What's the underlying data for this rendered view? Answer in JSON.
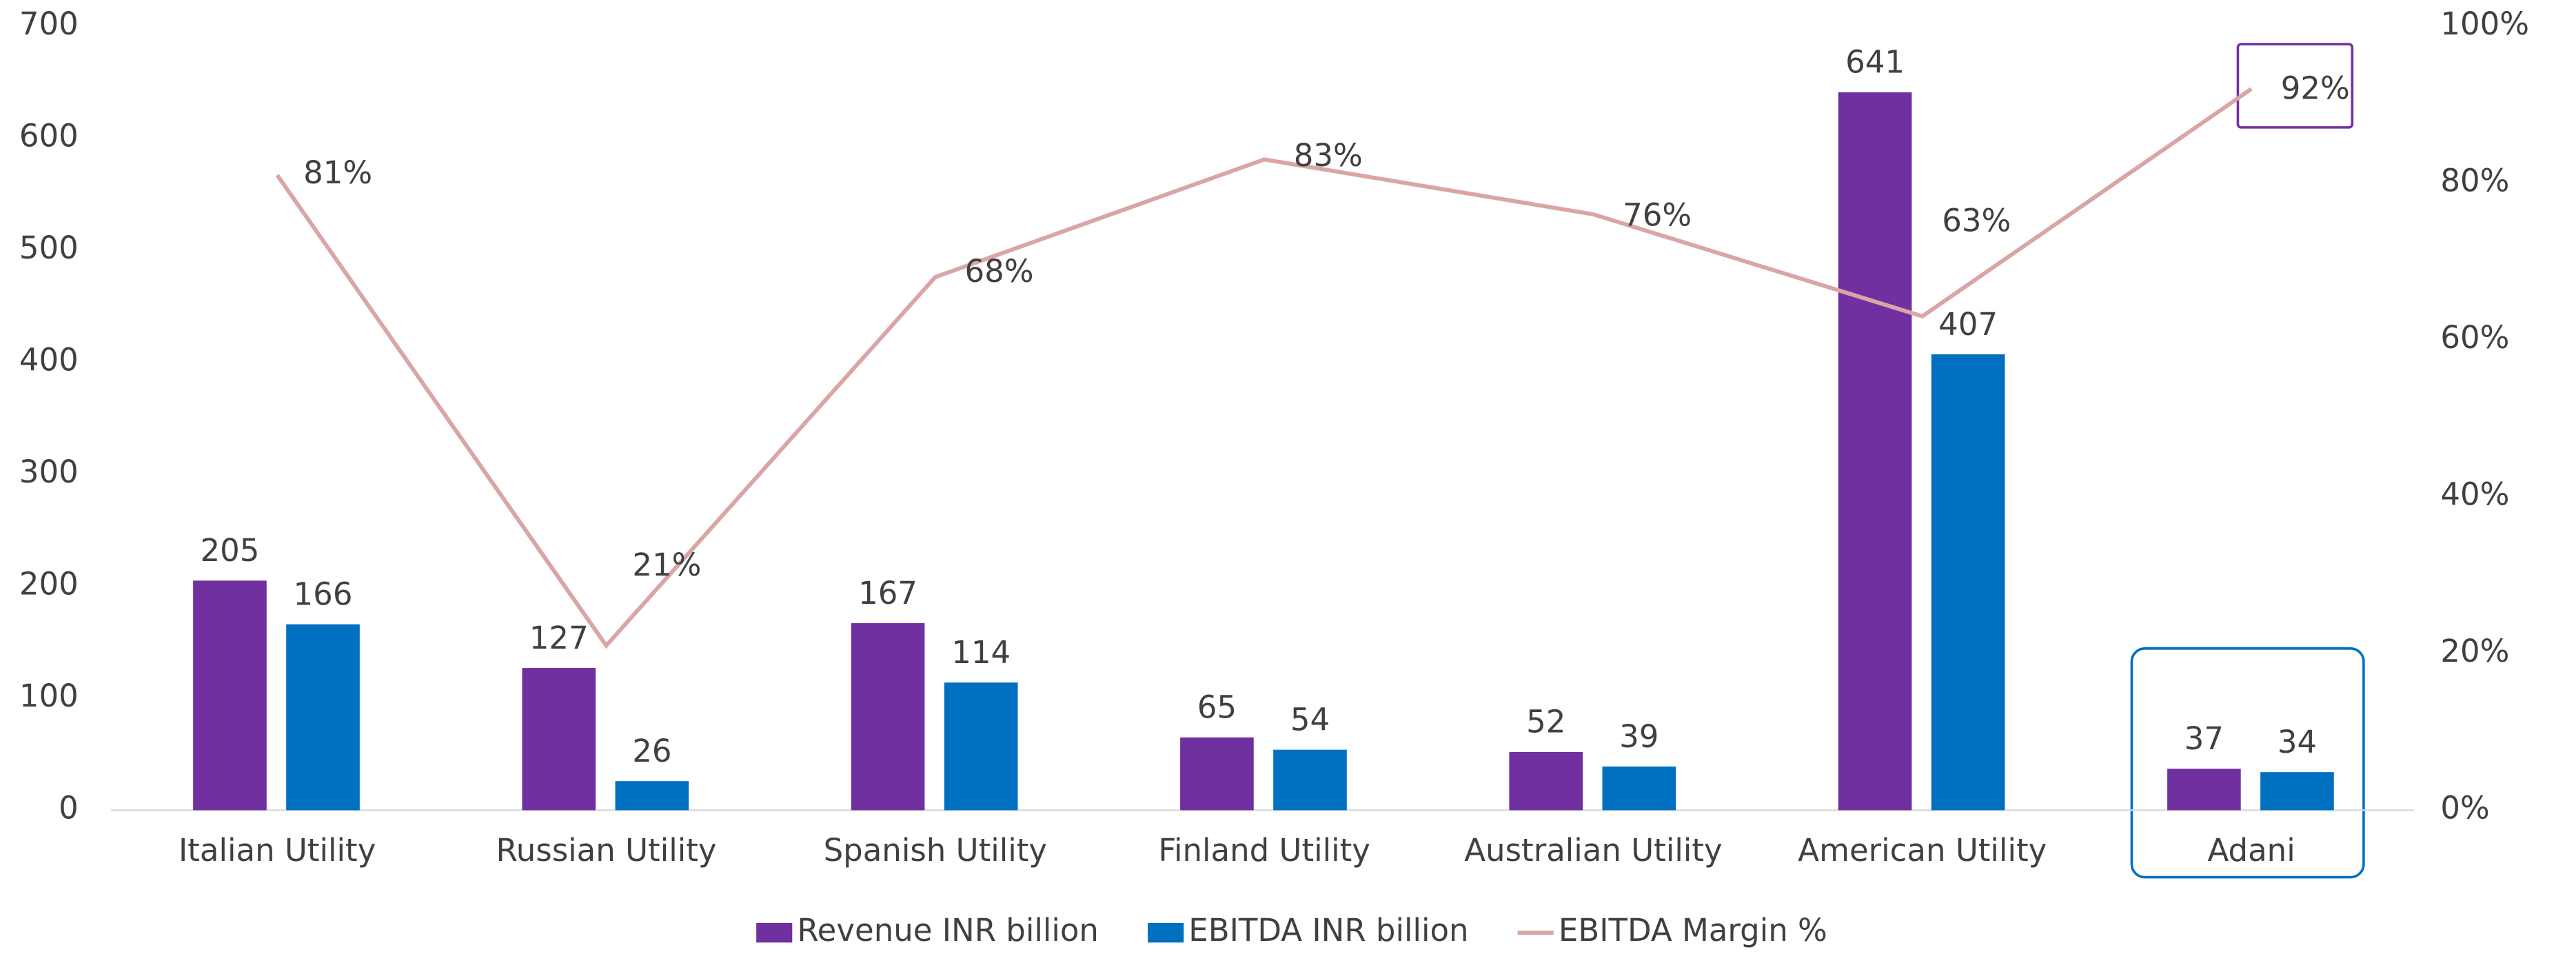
{
  "chart_data": {
    "type": "bar",
    "categories": [
      "Italian Utility",
      "Russian Utility",
      "Spanish Utility",
      "Finland Utility",
      "Australian Utility",
      "American Utility",
      "Adani"
    ],
    "series": [
      {
        "name": "Revenue INR billion",
        "color": "#7030a0",
        "values": [
          205,
          127,
          167,
          65,
          52,
          641,
          37
        ]
      },
      {
        "name": "EBITDA INR billion",
        "color": "#0070c0",
        "values": [
          166,
          26,
          114,
          54,
          39,
          407,
          34
        ]
      },
      {
        "name": "EBITDA Margin %",
        "color": "#d9a5a5",
        "type": "line",
        "axis": "y2",
        "values": [
          81,
          21,
          68,
          83,
          76,
          63,
          92
        ],
        "value_labels": [
          "81%",
          "21%",
          "68%",
          "83%",
          "76%",
          "63%",
          "92%"
        ]
      }
    ],
    "ylim": [
      0,
      700
    ],
    "yticks": [
      0,
      100,
      200,
      300,
      400,
      500,
      600,
      700
    ],
    "y2lim": [
      0,
      100
    ],
    "y2ticks": [
      {
        "value": 0,
        "label": "0%"
      },
      {
        "value": 20,
        "label": "20%"
      },
      {
        "value": 40,
        "label": "40%"
      },
      {
        "value": 60,
        "label": "60%"
      },
      {
        "value": 80,
        "label": "80%"
      },
      {
        "value": 100,
        "label": "100%"
      }
    ],
    "legend": "bottom"
  }
}
